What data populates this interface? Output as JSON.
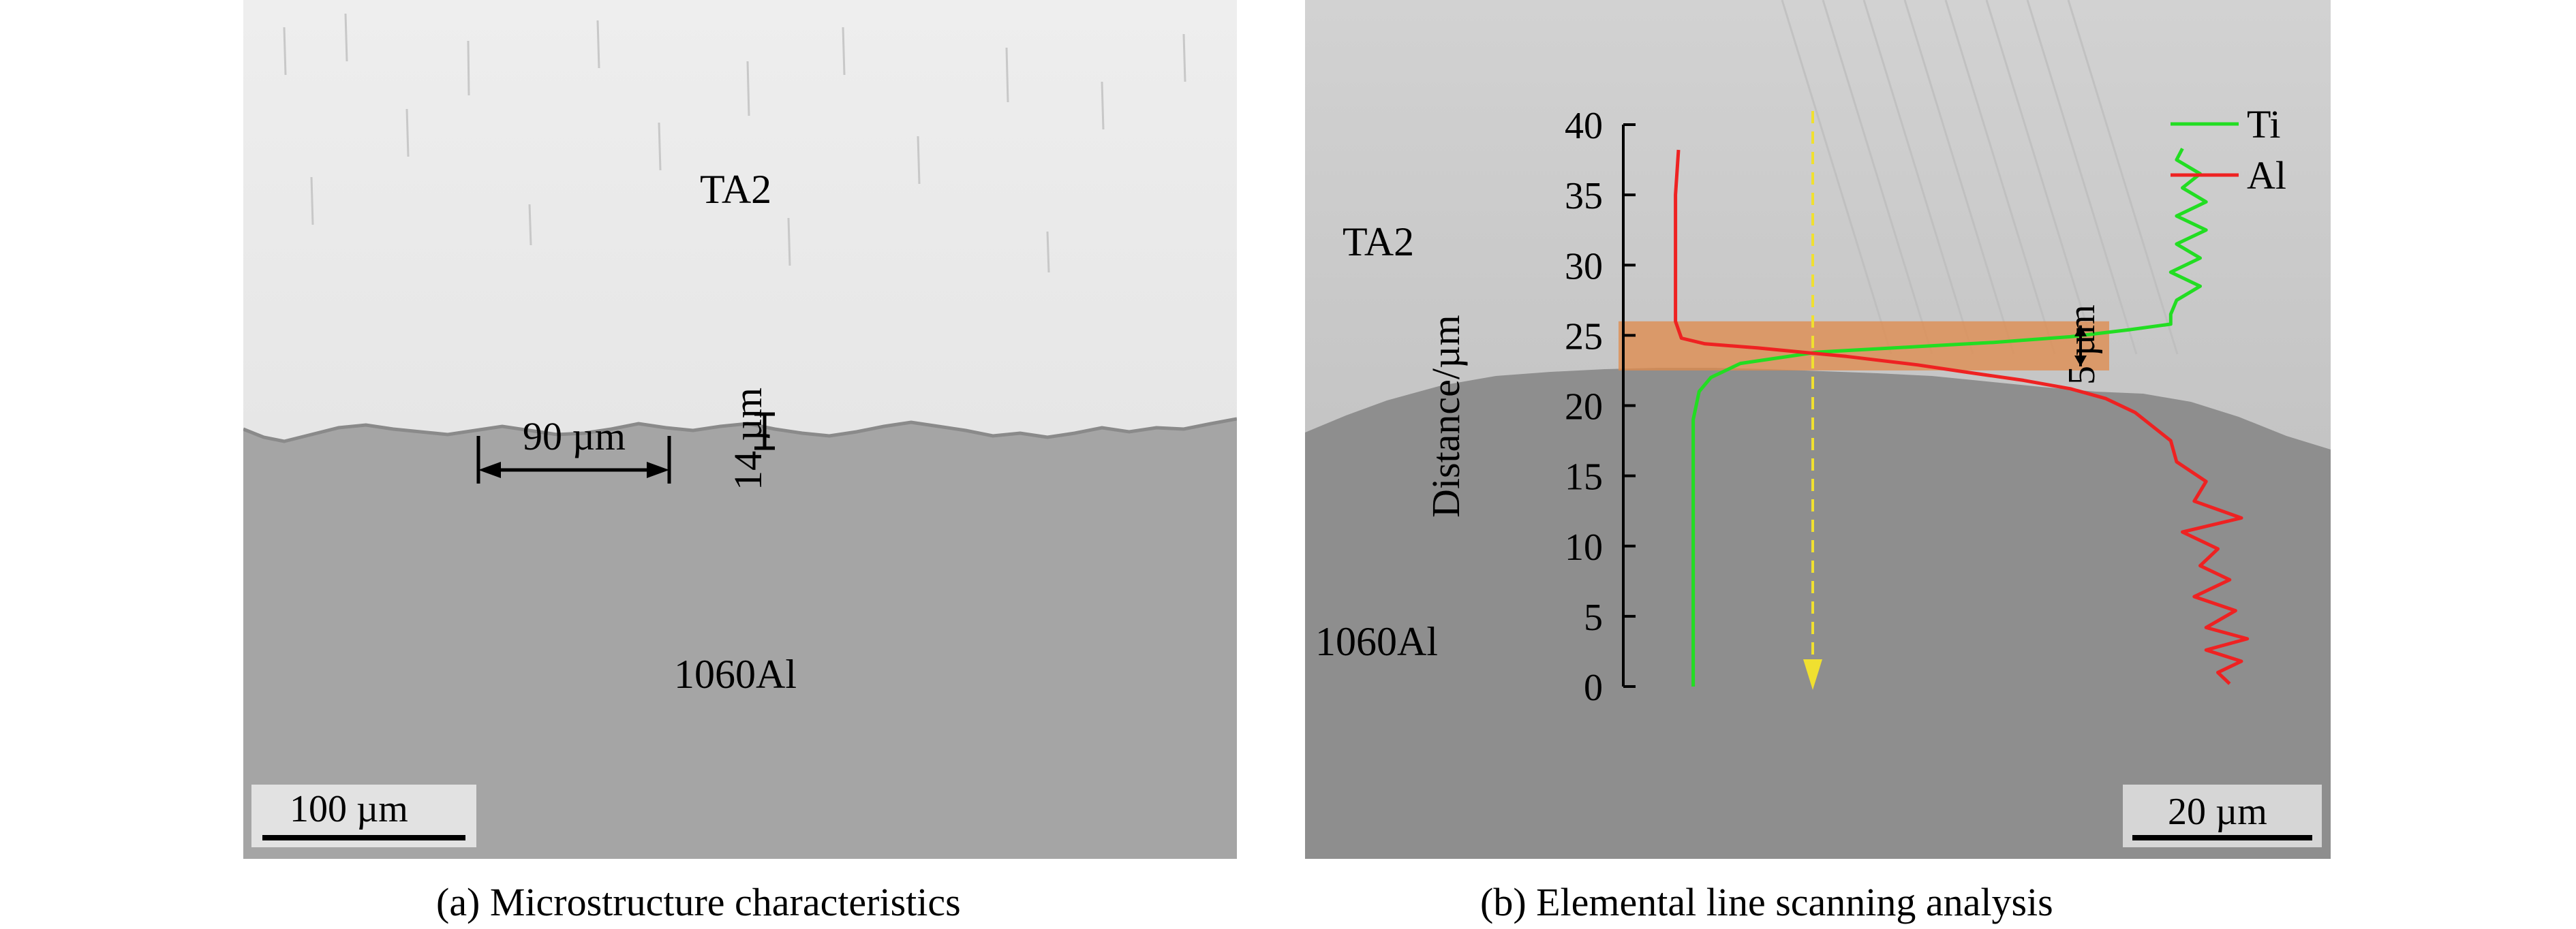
{
  "figure": {
    "panel_a": {
      "caption": "(a) Microstructure characteristics",
      "label_top": "TA2",
      "label_bottom": "1060Al",
      "dim_width": "90 µm",
      "dim_height": "14 µm",
      "scale_bar": "100 µm"
    },
    "panel_b": {
      "caption": "(b) Elemental line scanning analysis",
      "label_top": "TA2",
      "label_bottom": "1060Al",
      "dim_band": "5 µm",
      "scale_bar": "20 µm"
    }
  },
  "chart_data": {
    "type": "line",
    "title": "",
    "ylabel": "Distance/µm",
    "xlabel": "",
    "ylim": [
      0,
      40
    ],
    "yticks": [
      0,
      5,
      10,
      15,
      20,
      25,
      30,
      35,
      40
    ],
    "grid": false,
    "legend_placement": "top-right",
    "highlight_band": [
      22.5,
      26
    ],
    "series": [
      {
        "name": "Ti",
        "color": "#22dd22",
        "points": [
          [
            0.04,
            0
          ],
          [
            0.04,
            5
          ],
          [
            0.04,
            10
          ],
          [
            0.04,
            15
          ],
          [
            0.04,
            19
          ],
          [
            0.05,
            21
          ],
          [
            0.07,
            22
          ],
          [
            0.12,
            23
          ],
          [
            0.25,
            23.8
          ],
          [
            0.42,
            24.2
          ],
          [
            0.55,
            24.5
          ],
          [
            0.68,
            24.9
          ],
          [
            0.78,
            25.4
          ],
          [
            0.85,
            25.8
          ],
          [
            0.85,
            26.5
          ],
          [
            0.86,
            27.5
          ],
          [
            0.9,
            28.5
          ],
          [
            0.85,
            29.5
          ],
          [
            0.9,
            30.5
          ],
          [
            0.86,
            31.5
          ],
          [
            0.91,
            32.5
          ],
          [
            0.86,
            33.5
          ],
          [
            0.91,
            34.5
          ],
          [
            0.87,
            35.5
          ],
          [
            0.9,
            36.5
          ],
          [
            0.86,
            37.5
          ],
          [
            0.87,
            38.3
          ]
        ]
      },
      {
        "name": "Al",
        "color": "#ee2222",
        "points": [
          [
            0.95,
            0.2
          ],
          [
            0.93,
            1
          ],
          [
            0.97,
            1.8
          ],
          [
            0.91,
            2.6
          ],
          [
            0.98,
            3.4
          ],
          [
            0.91,
            4.2
          ],
          [
            0.96,
            5.4
          ],
          [
            0.89,
            6.4
          ],
          [
            0.95,
            7.6
          ],
          [
            0.9,
            8.6
          ],
          [
            0.93,
            9.8
          ],
          [
            0.87,
            11
          ],
          [
            0.97,
            12
          ],
          [
            0.89,
            13.2
          ],
          [
            0.91,
            14.6
          ],
          [
            0.86,
            16
          ],
          [
            0.85,
            17.5
          ],
          [
            0.82,
            18.5
          ],
          [
            0.79,
            19.5
          ],
          [
            0.74,
            20.5
          ],
          [
            0.68,
            21.2
          ],
          [
            0.6,
            21.8
          ],
          [
            0.5,
            22.4
          ],
          [
            0.42,
            22.9
          ],
          [
            0.3,
            23.5
          ],
          [
            0.15,
            24.1
          ],
          [
            0.06,
            24.4
          ],
          [
            0.02,
            24.8
          ],
          [
            0.01,
            26
          ],
          [
            0.01,
            30
          ],
          [
            0.01,
            35
          ],
          [
            0.015,
            38.2
          ]
        ]
      }
    ]
  }
}
